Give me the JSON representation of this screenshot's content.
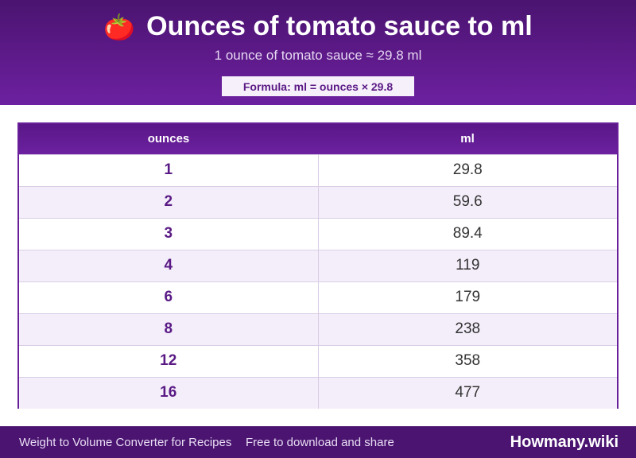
{
  "header": {
    "icon": "🍅",
    "title": "Ounces of tomato sauce to ml",
    "subtitle": "1 ounce of tomato sauce ≈ 29.8 ml",
    "formula": "Formula: ml = ounces × 29.8"
  },
  "table": {
    "columns": [
      "ounces",
      "ml"
    ],
    "rows": [
      {
        "ounces": "1",
        "ml": "29.8"
      },
      {
        "ounces": "2",
        "ml": "59.6"
      },
      {
        "ounces": "3",
        "ml": "89.4"
      },
      {
        "ounces": "4",
        "ml": "119"
      },
      {
        "ounces": "6",
        "ml": "179"
      },
      {
        "ounces": "8",
        "ml": "238"
      },
      {
        "ounces": "12",
        "ml": "358"
      },
      {
        "ounces": "16",
        "ml": "477"
      }
    ]
  },
  "footer": {
    "left": "Weight to Volume Converter for Recipes",
    "middle": "Free to download and share",
    "brand": "Howmany.wiki"
  },
  "colors": {
    "header_bg": "#5e1a8a",
    "accent": "#6c21a0",
    "row_alt": "#f4eefa",
    "footer_bg": "#4a1470"
  }
}
